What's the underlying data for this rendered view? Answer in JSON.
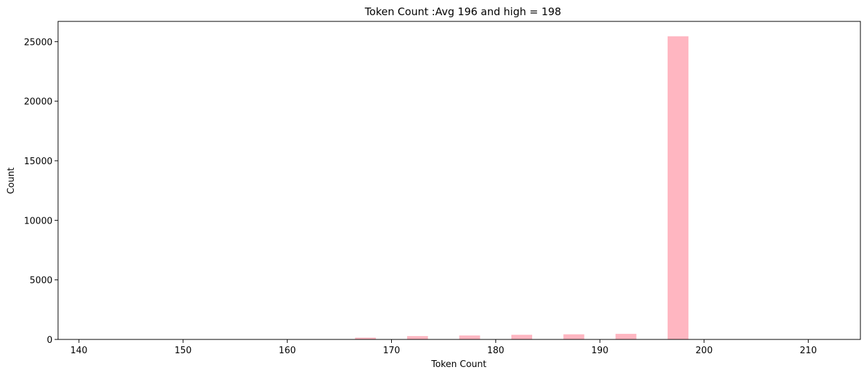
{
  "chart_data": {
    "type": "bar",
    "title": "Token Count :Avg 196 and high = 198",
    "xlabel": "Token Count",
    "ylabel": "Count",
    "xlim": [
      138,
      215
    ],
    "ylim": [
      0,
      26700
    ],
    "xticks": [
      140,
      150,
      160,
      170,
      180,
      190,
      200,
      210
    ],
    "yticks": [
      0,
      5000,
      10000,
      15000,
      20000,
      25000
    ],
    "grid": false,
    "bar_color": "#ffb6c1",
    "bins": [
      {
        "x_start": 166.5,
        "x_end": 168.5,
        "value": 150
      },
      {
        "x_start": 171.5,
        "x_end": 173.5,
        "value": 280
      },
      {
        "x_start": 176.5,
        "x_end": 178.5,
        "value": 330
      },
      {
        "x_start": 181.5,
        "x_end": 183.5,
        "value": 390
      },
      {
        "x_start": 186.5,
        "x_end": 188.5,
        "value": 430
      },
      {
        "x_start": 191.5,
        "x_end": 193.5,
        "value": 470
      },
      {
        "x_start": 196.5,
        "x_end": 198.5,
        "value": 25450
      }
    ]
  }
}
